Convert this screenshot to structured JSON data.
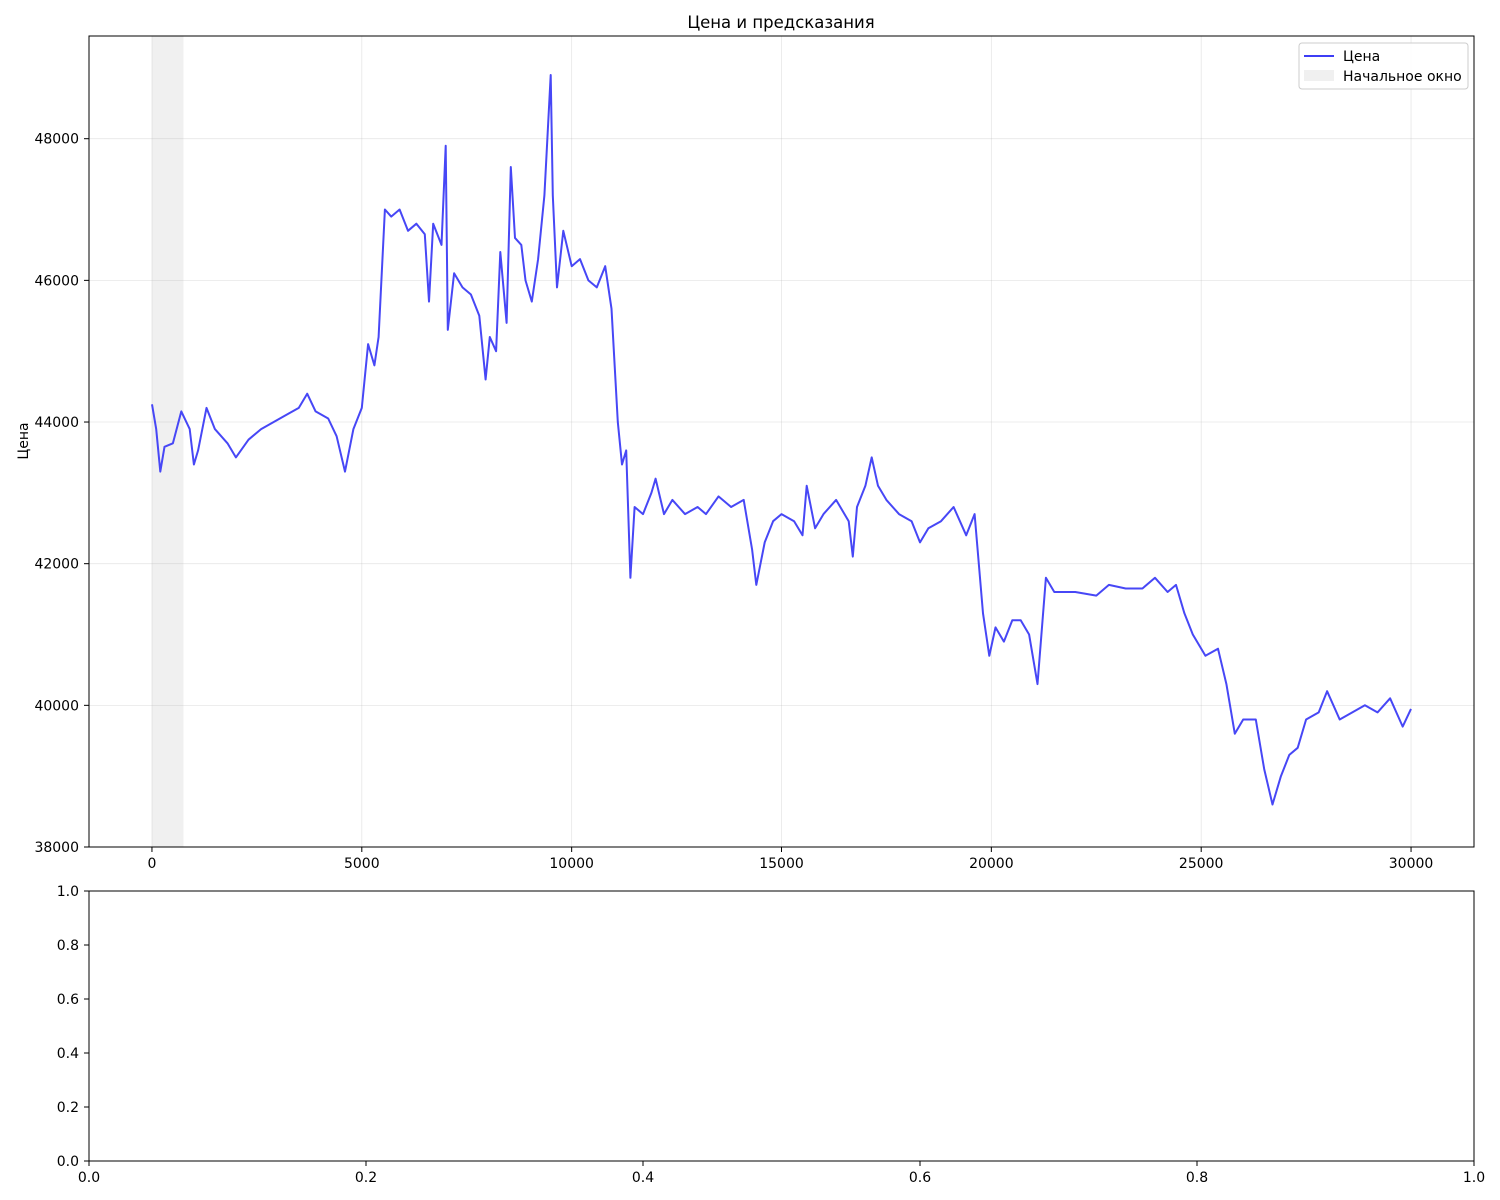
{
  "chart_data": [
    {
      "type": "line",
      "title": "Цена и предсказания",
      "xlabel": "",
      "ylabel": "Цена",
      "xlim": [
        -1500,
        31500
      ],
      "ylim": [
        38000,
        49450
      ],
      "x_ticks": [
        0,
        5000,
        10000,
        15000,
        20000,
        25000,
        30000
      ],
      "y_ticks": [
        38000,
        40000,
        42000,
        44000,
        46000,
        48000
      ],
      "grid": true,
      "legend_position": "top-right",
      "legend": [
        {
          "label": "Цена",
          "kind": "line",
          "color": "#3d3df5"
        },
        {
          "label": "Начальное окно",
          "kind": "patch",
          "color": "#d9d9d9"
        }
      ],
      "shaded_region": {
        "name": "Начальное окно",
        "x_start": 0,
        "x_end": 750
      },
      "series": [
        {
          "name": "Цена",
          "color": "#3d3df5",
          "points": [
            [
              0,
              44250
            ],
            [
              100,
              43900
            ],
            [
              200,
              43300
            ],
            [
              300,
              43650
            ],
            [
              500,
              43700
            ],
            [
              700,
              44150
            ],
            [
              900,
              43900
            ],
            [
              1000,
              43400
            ],
            [
              1100,
              43600
            ],
            [
              1300,
              44200
            ],
            [
              1500,
              43900
            ],
            [
              1800,
              43700
            ],
            [
              2000,
              43500
            ],
            [
              2300,
              43750
            ],
            [
              2600,
              43900
            ],
            [
              2900,
              44000
            ],
            [
              3200,
              44100
            ],
            [
              3500,
              44200
            ],
            [
              3700,
              44400
            ],
            [
              3900,
              44150
            ],
            [
              4200,
              44050
            ],
            [
              4400,
              43800
            ],
            [
              4600,
              43300
            ],
            [
              4800,
              43900
            ],
            [
              5000,
              44200
            ],
            [
              5150,
              45100
            ],
            [
              5300,
              44800
            ],
            [
              5400,
              45200
            ],
            [
              5550,
              47000
            ],
            [
              5700,
              46900
            ],
            [
              5900,
              47000
            ],
            [
              6100,
              46700
            ],
            [
              6300,
              46800
            ],
            [
              6500,
              46650
            ],
            [
              6600,
              45700
            ],
            [
              6700,
              46800
            ],
            [
              6900,
              46500
            ],
            [
              7000,
              47900
            ],
            [
              7050,
              45300
            ],
            [
              7200,
              46100
            ],
            [
              7400,
              45900
            ],
            [
              7600,
              45800
            ],
            [
              7800,
              45500
            ],
            [
              7950,
              44600
            ],
            [
              8050,
              45200
            ],
            [
              8200,
              45000
            ],
            [
              8300,
              46400
            ],
            [
              8450,
              45400
            ],
            [
              8550,
              47600
            ],
            [
              8650,
              46600
            ],
            [
              8800,
              46500
            ],
            [
              8900,
              46000
            ],
            [
              9050,
              45700
            ],
            [
              9200,
              46300
            ],
            [
              9350,
              47200
            ],
            [
              9500,
              48900
            ],
            [
              9550,
              47200
            ],
            [
              9650,
              45900
            ],
            [
              9800,
              46700
            ],
            [
              10000,
              46200
            ],
            [
              10200,
              46300
            ],
            [
              10400,
              46000
            ],
            [
              10600,
              45900
            ],
            [
              10800,
              46200
            ],
            [
              10950,
              45600
            ],
            [
              11100,
              44000
            ],
            [
              11200,
              43400
            ],
            [
              11300,
              43600
            ],
            [
              11400,
              41800
            ],
            [
              11500,
              42800
            ],
            [
              11700,
              42700
            ],
            [
              11900,
              43000
            ],
            [
              12000,
              43200
            ],
            [
              12200,
              42700
            ],
            [
              12400,
              42900
            ],
            [
              12700,
              42700
            ],
            [
              13000,
              42800
            ],
            [
              13200,
              42700
            ],
            [
              13500,
              42950
            ],
            [
              13800,
              42800
            ],
            [
              14100,
              42900
            ],
            [
              14300,
              42200
            ],
            [
              14400,
              41700
            ],
            [
              14600,
              42300
            ],
            [
              14800,
              42600
            ],
            [
              15000,
              42700
            ],
            [
              15300,
              42600
            ],
            [
              15500,
              42400
            ],
            [
              15600,
              43100
            ],
            [
              15800,
              42500
            ],
            [
              16000,
              42700
            ],
            [
              16300,
              42900
            ],
            [
              16600,
              42600
            ],
            [
              16700,
              42100
            ],
            [
              16800,
              42800
            ],
            [
              17000,
              43100
            ],
            [
              17150,
              43500
            ],
            [
              17300,
              43100
            ],
            [
              17500,
              42900
            ],
            [
              17800,
              42700
            ],
            [
              18100,
              42600
            ],
            [
              18300,
              42300
            ],
            [
              18500,
              42500
            ],
            [
              18800,
              42600
            ],
            [
              19100,
              42800
            ],
            [
              19400,
              42400
            ],
            [
              19600,
              42700
            ],
            [
              19800,
              41300
            ],
            [
              19950,
              40700
            ],
            [
              20100,
              41100
            ],
            [
              20300,
              40900
            ],
            [
              20500,
              41200
            ],
            [
              20700,
              41200
            ],
            [
              20900,
              41000
            ],
            [
              21100,
              40300
            ],
            [
              21300,
              41800
            ],
            [
              21500,
              41600
            ],
            [
              22000,
              41600
            ],
            [
              22500,
              41550
            ],
            [
              22800,
              41700
            ],
            [
              23200,
              41650
            ],
            [
              23600,
              41650
            ],
            [
              23900,
              41800
            ],
            [
              24200,
              41600
            ],
            [
              24400,
              41700
            ],
            [
              24600,
              41300
            ],
            [
              24800,
              41000
            ],
            [
              25100,
              40700
            ],
            [
              25400,
              40800
            ],
            [
              25600,
              40300
            ],
            [
              25800,
              39600
            ],
            [
              26000,
              39800
            ],
            [
              26300,
              39800
            ],
            [
              26500,
              39100
            ],
            [
              26700,
              38600
            ],
            [
              26900,
              39000
            ],
            [
              27100,
              39300
            ],
            [
              27300,
              39400
            ],
            [
              27500,
              39800
            ],
            [
              27800,
              39900
            ],
            [
              28000,
              40200
            ],
            [
              28300,
              39800
            ],
            [
              28600,
              39900
            ],
            [
              28900,
              40000
            ],
            [
              29200,
              39900
            ],
            [
              29500,
              40100
            ],
            [
              29800,
              39700
            ],
            [
              30000,
              39950
            ]
          ]
        }
      ]
    },
    {
      "type": "line",
      "title": "",
      "xlim": [
        0,
        1
      ],
      "ylim": [
        0,
        1
      ],
      "x_ticks": [
        0.0,
        0.2,
        0.4,
        0.6,
        0.8,
        1.0
      ],
      "y_ticks": [
        0.0,
        0.2,
        0.4,
        0.6,
        0.8,
        1.0
      ],
      "x_tick_labels": [
        "0.0",
        "0.2",
        "0.4",
        "0.6",
        "0.8",
        "1.0"
      ],
      "y_tick_labels": [
        "0.0",
        "0.2",
        "0.4",
        "0.6",
        "0.8",
        "1.0"
      ],
      "grid": false,
      "series": []
    }
  ]
}
